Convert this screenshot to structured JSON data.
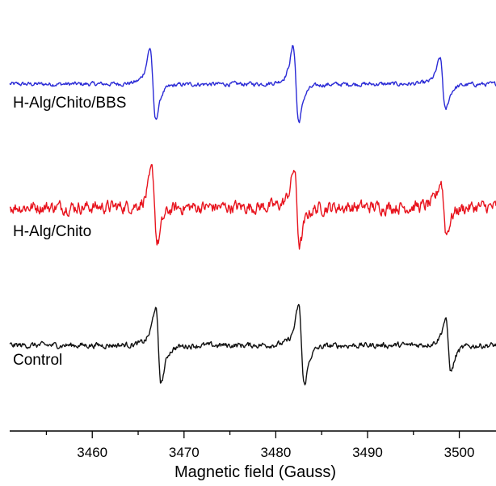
{
  "chart_data": {
    "type": "line",
    "xlabel": "Magnetic field (Gauss)",
    "xlim": [
      3451,
      3504
    ],
    "x_ticks": [
      3460,
      3470,
      3480,
      3490,
      3500
    ],
    "y_axis_shown": false,
    "grid": false,
    "legend": "none (series labelled inline)",
    "peaks_gauss": [
      3466.8,
      3482.3,
      3498.2
    ],
    "series": [
      {
        "name": "H-Alg/Chito/BBS",
        "color": "#2b2bd6",
        "baseline": 0,
        "lines": [
          {
            "center": 3466.6,
            "width": 0.55,
            "amplitude": 1.0
          },
          {
            "center": 3482.2,
            "width": 0.55,
            "amplitude": 1.05
          },
          {
            "center": 3498.2,
            "width": 0.55,
            "amplitude": 0.72
          }
        ],
        "noise": 0.03
      },
      {
        "name": "H-Alg/Chito",
        "color": "#e8141e",
        "baseline": -1.55,
        "lines": [
          {
            "center": 3466.8,
            "width": 0.55,
            "amplitude": 1.0
          },
          {
            "center": 3482.3,
            "width": 0.55,
            "amplitude": 1.05
          },
          {
            "center": 3498.3,
            "width": 0.55,
            "amplitude": 0.72
          }
        ],
        "noise": 0.09
      },
      {
        "name": "Control",
        "color": "#111111",
        "baseline": -3.2,
        "lines": [
          {
            "center": 3467.2,
            "width": 0.55,
            "amplitude": 1.05
          },
          {
            "center": 3482.8,
            "width": 0.55,
            "amplitude": 1.1
          },
          {
            "center": 3498.8,
            "width": 0.55,
            "amplitude": 0.72
          }
        ],
        "noise": 0.04
      }
    ]
  }
}
